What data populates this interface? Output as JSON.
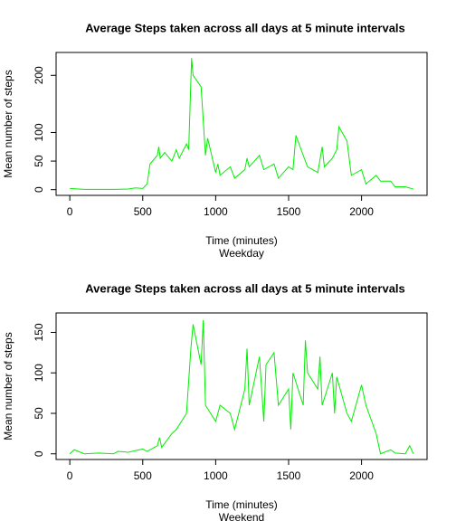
{
  "chart_data": [
    {
      "type": "line",
      "title": "Average Steps taken across all days at 5 minute intervals",
      "xlabel": "Time (minutes)",
      "panel_label": "Weekday",
      "ylabel": "Mean number of steps",
      "x": [
        0,
        100,
        200,
        300,
        400,
        450,
        500,
        530,
        550,
        600,
        610,
        620,
        650,
        700,
        730,
        750,
        800,
        815,
        830,
        835,
        845,
        900,
        915,
        930,
        945,
        1000,
        1015,
        1030,
        1100,
        1130,
        1200,
        1215,
        1230,
        1300,
        1330,
        1400,
        1430,
        1500,
        1530,
        1550,
        1600,
        1630,
        1700,
        1730,
        1745,
        1800,
        1830,
        1845,
        1900,
        1930,
        2000,
        2030,
        2100,
        2130,
        2200,
        2230,
        2300,
        2355
      ],
      "series": [
        {
          "name": "Weekday",
          "color": "#00ee00",
          "values": [
            2,
            0.5,
            0.5,
            0.5,
            1,
            3,
            2,
            10,
            45,
            60,
            75,
            55,
            65,
            50,
            70,
            55,
            80,
            70,
            190,
            230,
            200,
            180,
            120,
            60,
            90,
            30,
            45,
            25,
            40,
            20,
            35,
            55,
            40,
            60,
            35,
            45,
            20,
            40,
            35,
            95,
            60,
            40,
            30,
            75,
            40,
            55,
            70,
            110,
            85,
            25,
            35,
            10,
            25,
            15,
            15,
            5,
            5,
            1
          ]
        }
      ],
      "xlim": [
        -94,
        2449
      ],
      "xticks": [
        0,
        500,
        1000,
        1500,
        2000
      ],
      "ylim": [
        -10,
        240
      ],
      "yticks": [
        0,
        50,
        100,
        200
      ]
    },
    {
      "type": "line",
      "title": "Average Steps taken across all days at 5 minute intervals",
      "xlabel": "Time (minutes)",
      "panel_label": "Weekend",
      "ylabel": "Mean number of steps",
      "x": [
        0,
        30,
        100,
        200,
        300,
        330,
        400,
        500,
        530,
        600,
        615,
        630,
        700,
        730,
        800,
        830,
        845,
        900,
        915,
        930,
        1000,
        1030,
        1100,
        1130,
        1200,
        1215,
        1230,
        1300,
        1330,
        1345,
        1400,
        1430,
        1500,
        1515,
        1530,
        1600,
        1615,
        1630,
        1700,
        1715,
        1730,
        1800,
        1815,
        1830,
        1900,
        1930,
        2000,
        2030,
        2100,
        2130,
        2200,
        2230,
        2300,
        2330,
        2355
      ],
      "series": [
        {
          "name": "Weekend",
          "color": "#00ee00",
          "values": [
            0,
            5,
            0,
            1,
            0,
            3,
            2,
            6,
            3,
            10,
            20,
            8,
            25,
            30,
            50,
            130,
            160,
            110,
            165,
            60,
            40,
            60,
            50,
            30,
            80,
            130,
            60,
            120,
            40,
            110,
            125,
            60,
            80,
            30,
            100,
            60,
            140,
            100,
            80,
            120,
            60,
            100,
            50,
            95,
            50,
            40,
            85,
            60,
            25,
            0,
            5,
            1,
            0,
            10,
            0
          ]
        }
      ],
      "xlim": [
        -94,
        2449
      ],
      "xticks": [
        0,
        500,
        1000,
        1500,
        2000
      ],
      "ylim": [
        -7,
        174
      ],
      "yticks": [
        0,
        50,
        100,
        150
      ]
    }
  ]
}
